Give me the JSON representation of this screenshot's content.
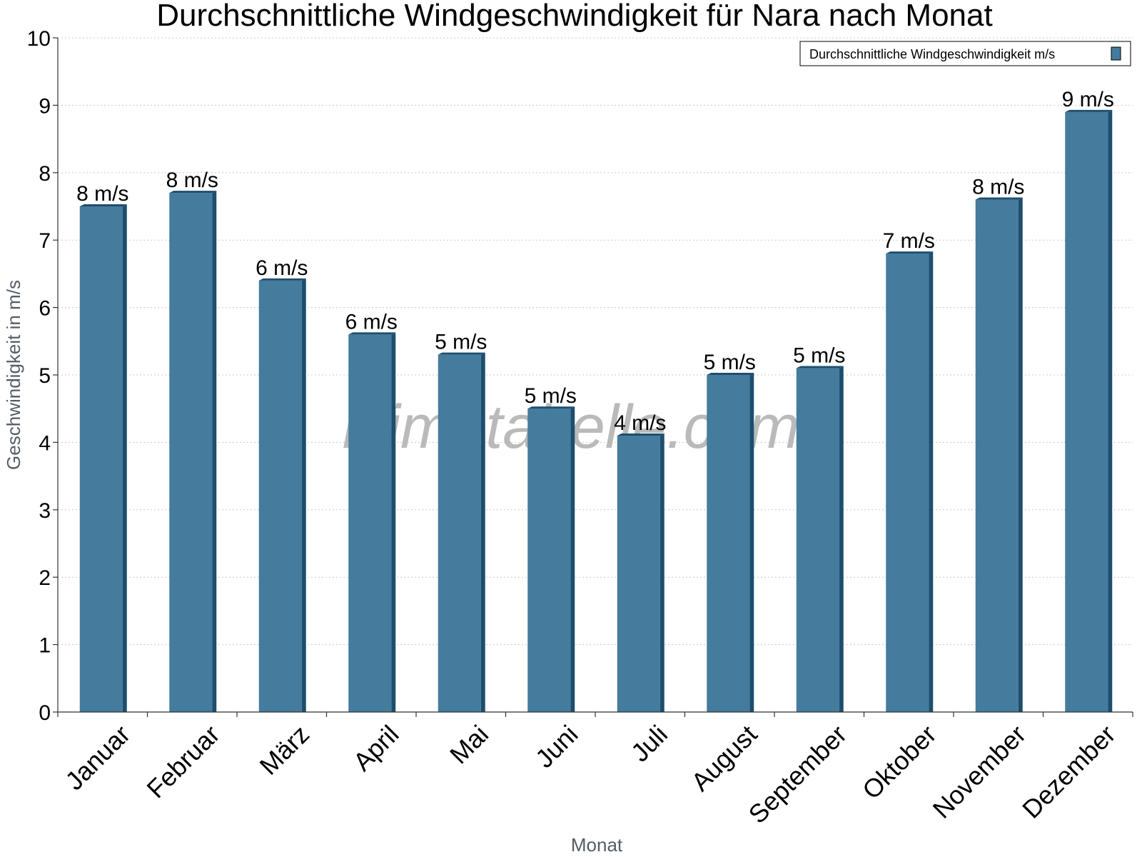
{
  "chart_data": {
    "type": "bar",
    "title": "Durchschnittliche Windgeschwindigkeit für Nara nach Monat",
    "xlabel": "Monat",
    "ylabel": "Geschwindigkeit in m/s",
    "categories": [
      "Januar",
      "Februar",
      "März",
      "April",
      "Mai",
      "Juni",
      "Juli",
      "August",
      "September",
      "Oktober",
      "November",
      "Dezember"
    ],
    "series": [
      {
        "name": "Durchschnittliche Windgeschwindigkeit m/s",
        "values": [
          7.5,
          7.7,
          6.4,
          5.6,
          5.3,
          4.5,
          4.1,
          5.0,
          5.1,
          6.8,
          7.6,
          8.9
        ],
        "labels": [
          "8 m/s",
          "8 m/s",
          "6 m/s",
          "6 m/s",
          "5 m/s",
          "5 m/s",
          "4 m/s",
          "5 m/s",
          "5 m/s",
          "7 m/s",
          "8 m/s",
          "9 m/s"
        ],
        "color": "#457b9d",
        "side_color": "#1d4e6e"
      }
    ],
    "ylim": [
      0,
      10
    ],
    "yticks": [
      0,
      1,
      2,
      3,
      4,
      5,
      6,
      7,
      8,
      9,
      10
    ],
    "grid": true,
    "legend_position": "top-right",
    "watermark": "klimatabelle.com"
  }
}
